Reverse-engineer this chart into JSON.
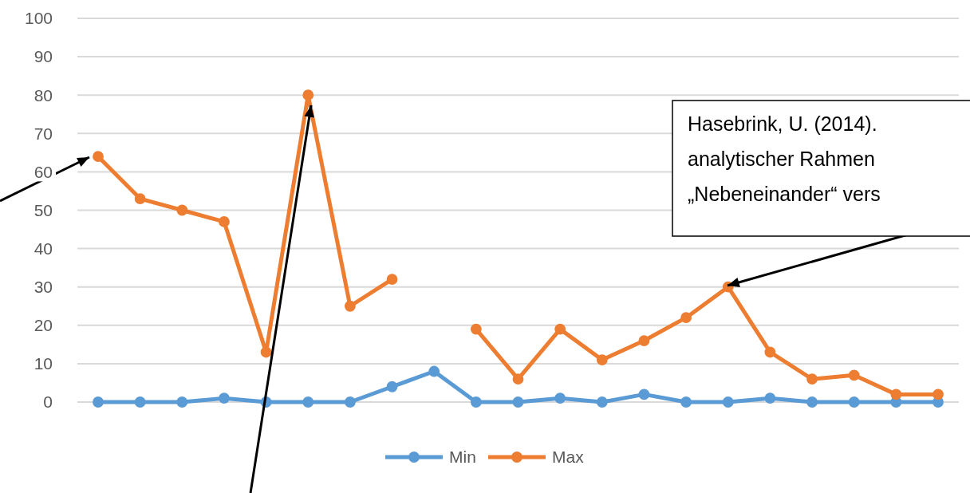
{
  "chart_data": {
    "type": "line",
    "categories": [
      null,
      null,
      null,
      null,
      null,
      null,
      null,
      null,
      null,
      null,
      null,
      null,
      null,
      null,
      null,
      null,
      null,
      null,
      null,
      null,
      null
    ],
    "series": [
      {
        "name": "Min",
        "color": "#5b9bd5",
        "values": [
          0,
          0,
          0,
          1,
          0,
          0,
          0,
          4,
          8,
          0,
          0,
          1,
          0,
          2,
          0,
          0,
          1,
          0,
          0,
          0,
          0
        ]
      },
      {
        "name": "Max",
        "color": "#ed7d31",
        "values": [
          64,
          53,
          50,
          47,
          13,
          80,
          25,
          32,
          null,
          19,
          6,
          19,
          11,
          16,
          22,
          30,
          13,
          6,
          7,
          2,
          2
        ]
      }
    ],
    "ylim": [
      0,
      100
    ],
    "yticks": [
      0,
      10,
      20,
      30,
      40,
      50,
      60,
      70,
      80,
      90,
      100
    ],
    "grid": "y",
    "legend": "bottom",
    "marker": "circle",
    "line_style": "solid",
    "annotations": [
      "Hasebrink, U. (2014).\nanalytischer Rahmen\n„Nebeneinander“ vers"
    ]
  }
}
